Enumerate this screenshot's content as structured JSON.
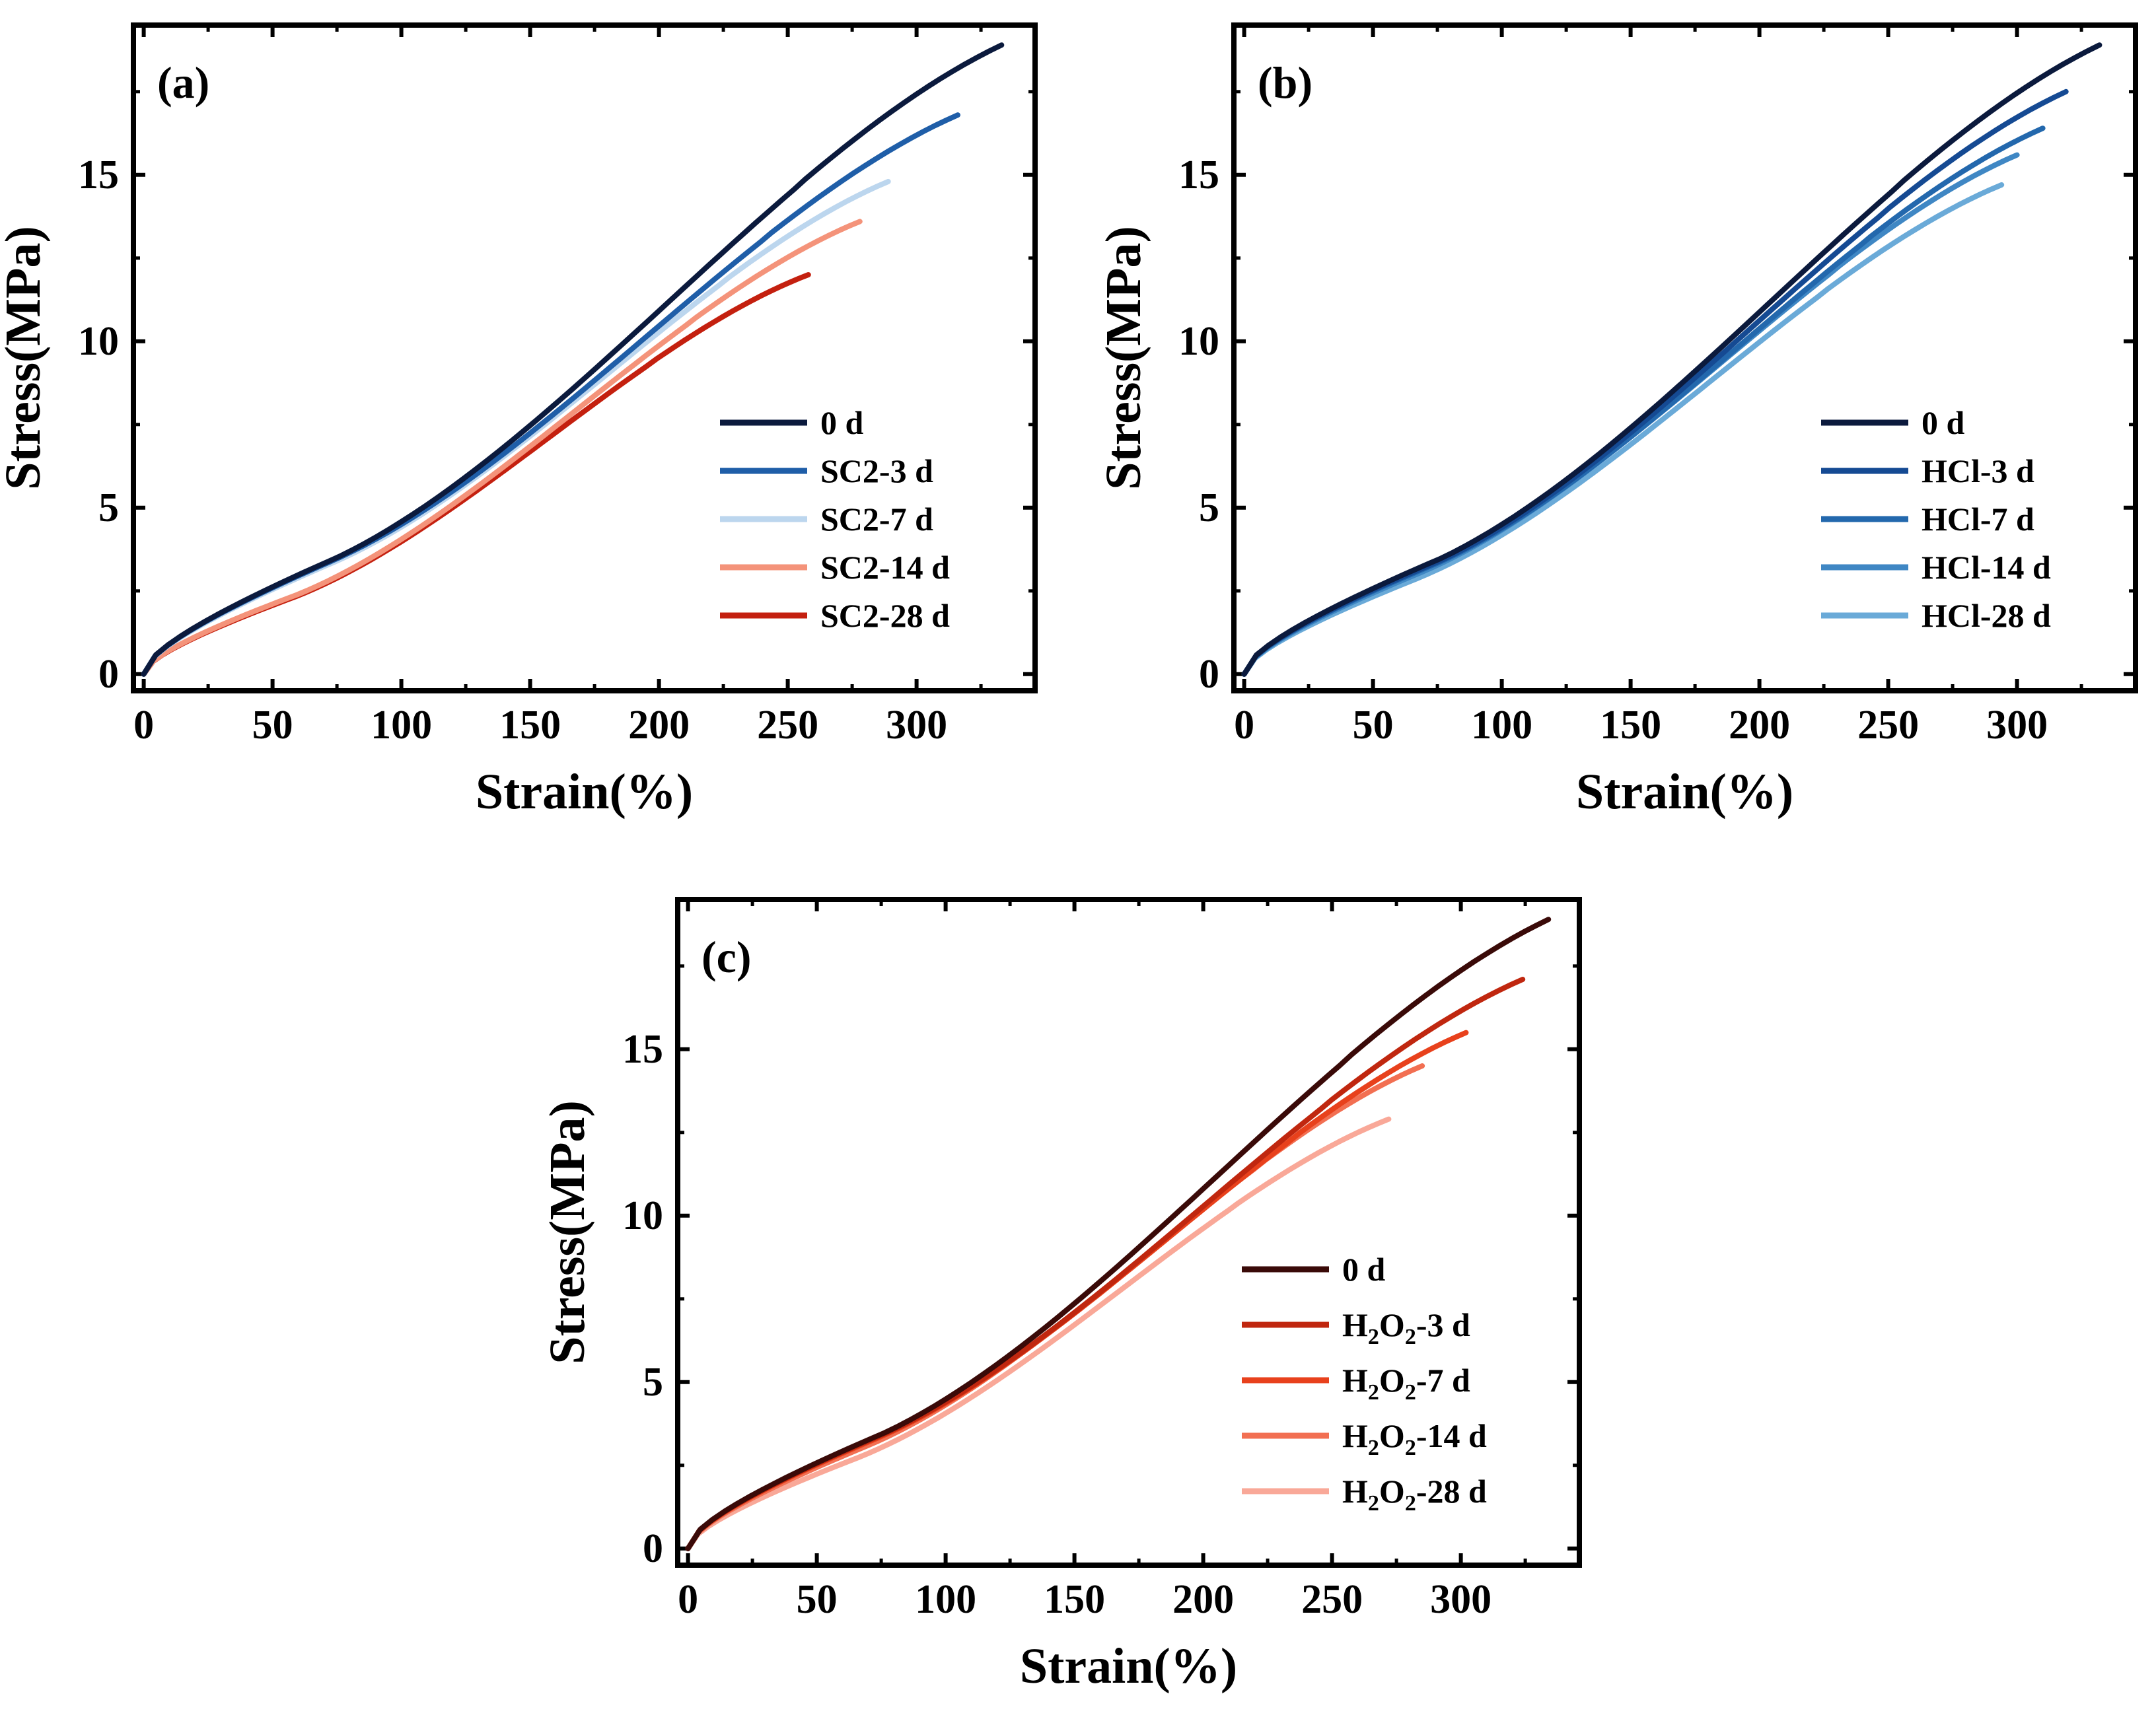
{
  "chart_data": [
    {
      "type": "line",
      "panel_label": "(a)",
      "xlabel": "Strain(%)",
      "ylabel": "Stress(MPa)",
      "xlim": [
        -4,
        346
      ],
      "ylim": [
        -0.5,
        19.5
      ],
      "xticks": [
        0,
        50,
        100,
        150,
        200,
        250,
        300
      ],
      "yticks": [
        0,
        5,
        10,
        15
      ],
      "legend_position": "center-right",
      "series": [
        {
          "name": "0 d",
          "name_parts": [
            {
              "t": "0 d"
            }
          ],
          "color": "#0b1a3d",
          "max_strain": 333,
          "max_stress": 18.9,
          "knee": [
            75,
            3.5
          ]
        },
        {
          "name": "SC2-3 d",
          "name_parts": [
            {
              "t": "SC2-3 d"
            }
          ],
          "color": "#1f5ea8",
          "max_strain": 316,
          "max_stress": 16.8,
          "knee": [
            73,
            3.4
          ]
        },
        {
          "name": "SC2-7 d",
          "name_parts": [
            {
              "t": "SC2-7 d"
            }
          ],
          "color": "#bcd6ee",
          "max_strain": 289,
          "max_stress": 14.8,
          "knee": [
            72,
            3.3
          ]
        },
        {
          "name": "SC2-14 d",
          "name_parts": [
            {
              "t": "SC2-14 d"
            }
          ],
          "color": "#f4937a",
          "max_strain": 278,
          "max_stress": 13.6,
          "knee": [
            60,
            2.4
          ]
        },
        {
          "name": "SC2-28 d",
          "name_parts": [
            {
              "t": "SC2-28 d"
            }
          ],
          "color": "#c4200f",
          "max_strain": 258,
          "max_stress": 12.0,
          "knee": [
            58,
            2.3
          ]
        }
      ]
    },
    {
      "type": "line",
      "panel_label": "(b)",
      "xlabel": "Strain(%)",
      "ylabel": "Stress(MPa)",
      "xlim": [
        -4,
        346
      ],
      "ylim": [
        -0.5,
        19.5
      ],
      "xticks": [
        0,
        50,
        100,
        150,
        200,
        250,
        300
      ],
      "yticks": [
        0,
        5,
        10,
        15
      ],
      "legend_position": "center-right",
      "series": [
        {
          "name": "0 d",
          "name_parts": [
            {
              "t": "0 d"
            }
          ],
          "color": "#0b1a3d",
          "max_strain": 332,
          "max_stress": 18.9,
          "knee": [
            77,
            3.5
          ]
        },
        {
          "name": "HCl-3 d",
          "name_parts": [
            {
              "t": "HCl-3 d"
            }
          ],
          "color": "#154a93",
          "max_strain": 319,
          "max_stress": 17.5,
          "knee": [
            76,
            3.4
          ]
        },
        {
          "name": "HCl-7 d",
          "name_parts": [
            {
              "t": "HCl-7 d"
            }
          ],
          "color": "#2368ad",
          "max_strain": 310,
          "max_stress": 16.4,
          "knee": [
            74,
            3.3
          ]
        },
        {
          "name": "HCl-14 d",
          "name_parts": [
            {
              "t": "HCl-14 d"
            }
          ],
          "color": "#3f87c4",
          "max_strain": 300,
          "max_stress": 15.6,
          "knee": [
            70,
            3.1
          ]
        },
        {
          "name": "HCl-28 d",
          "name_parts": [
            {
              "t": "HCl-28 d"
            }
          ],
          "color": "#6aaad8",
          "max_strain": 294,
          "max_stress": 14.7,
          "knee": [
            68,
            2.9
          ]
        }
      ]
    },
    {
      "type": "line",
      "panel_label": "(c)",
      "xlabel": "Strain(%)",
      "ylabel": "Stress(MPa)",
      "xlim": [
        -4,
        346
      ],
      "ylim": [
        -0.5,
        19.5
      ],
      "xticks": [
        0,
        50,
        100,
        150,
        200,
        250,
        300
      ],
      "yticks": [
        0,
        5,
        10,
        15
      ],
      "legend_position": "bottom-right",
      "series": [
        {
          "name": "0 d",
          "name_parts": [
            {
              "t": "0 d"
            }
          ],
          "color": "#3a0a08",
          "max_strain": 334,
          "max_stress": 18.9,
          "knee": [
            77,
            3.5
          ]
        },
        {
          "name": "H2O2-3 d",
          "name_parts": [
            {
              "t": "H"
            },
            {
              "t": "2",
              "sub": true
            },
            {
              "t": "O"
            },
            {
              "t": "2",
              "sub": true
            },
            {
              "t": "-3 d"
            }
          ],
          "color": "#c0270f",
          "max_strain": 324,
          "max_stress": 17.1,
          "knee": [
            75,
            3.4
          ]
        },
        {
          "name": "H2O2-7 d",
          "name_parts": [
            {
              "t": "H"
            },
            {
              "t": "2",
              "sub": true
            },
            {
              "t": "O"
            },
            {
              "t": "2",
              "sub": true
            },
            {
              "t": "-7 d"
            }
          ],
          "color": "#e8411c",
          "max_strain": 302,
          "max_stress": 15.5,
          "knee": [
            73,
            3.3
          ]
        },
        {
          "name": "H2O2-14 d",
          "name_parts": [
            {
              "t": "H"
            },
            {
              "t": "2",
              "sub": true
            },
            {
              "t": "O"
            },
            {
              "t": "2",
              "sub": true
            },
            {
              "t": "-14 d"
            }
          ],
          "color": "#f26f52",
          "max_strain": 285,
          "max_stress": 14.5,
          "knee": [
            70,
            3.1
          ]
        },
        {
          "name": "H2O2-28 d",
          "name_parts": [
            {
              "t": "H"
            },
            {
              "t": "2",
              "sub": true
            },
            {
              "t": "O"
            },
            {
              "t": "2",
              "sub": true
            },
            {
              "t": "-28 d"
            }
          ],
          "color": "#f9a898",
          "max_strain": 272,
          "max_stress": 12.9,
          "knee": [
            65,
            2.7
          ]
        }
      ]
    }
  ]
}
